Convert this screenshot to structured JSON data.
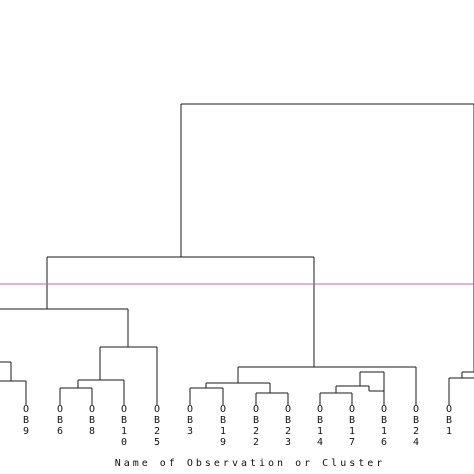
{
  "chart_data": {
    "type": "dendrogram",
    "xlabel": "Name of Observation or Cluster",
    "leaves": [
      "OB9",
      "OB6",
      "OB8",
      "OB10",
      "OB25",
      "OB3",
      "OB19",
      "OB22",
      "OB23",
      "OB14",
      "OB17",
      "OB16",
      "OB24",
      "OB1"
    ],
    "cut_line": {
      "color": "#c06aa8"
    },
    "link_color": "#1a1a1a"
  }
}
